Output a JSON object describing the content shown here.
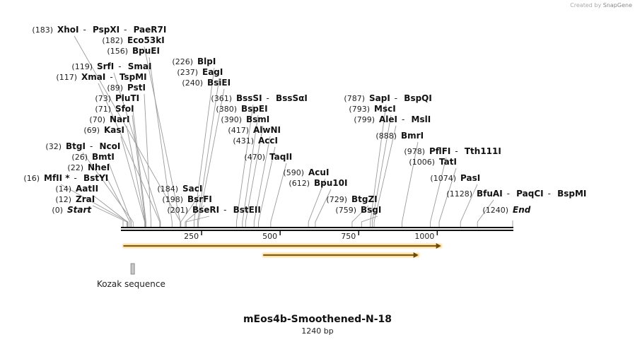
{
  "credit": {
    "prefix": "Created by",
    "brand": "SnapGene"
  },
  "title": "mEos4b-Smoothened-N-18",
  "subtitle": "1240 bp",
  "sequence_length": 1240,
  "ticks": [
    {
      "pos": 250,
      "label": "250"
    },
    {
      "pos": 500,
      "label": "500"
    },
    {
      "pos": 750,
      "label": "750"
    },
    {
      "pos": 1000,
      "label": "1000"
    }
  ],
  "features": [
    {
      "name": "feature-arrow-long",
      "start": 1,
      "end": 1012,
      "color": "#f3c35b",
      "label": ""
    },
    {
      "name": "feature-arrow-short",
      "start": 446,
      "end": 940,
      "color": "#f3c35b",
      "label": ""
    }
  ],
  "kozak": {
    "label": "Kozak sequence",
    "start": 25,
    "end": 33
  },
  "sites": [
    {
      "pos": 0,
      "pos_label": "(0)",
      "names": [
        "Start"
      ],
      "italic": true
    },
    {
      "pos": 12,
      "pos_label": "(12)",
      "names": [
        "ZraI"
      ]
    },
    {
      "pos": 14,
      "pos_label": "(14)",
      "names": [
        "AatII"
      ]
    },
    {
      "pos": 16,
      "pos_label": "(16)",
      "names": [
        "MfII *",
        "BstYI"
      ]
    },
    {
      "pos": 22,
      "pos_label": "(22)",
      "names": [
        "NheI"
      ]
    },
    {
      "pos": 26,
      "pos_label": "(26)",
      "names": [
        "BmtI"
      ]
    },
    {
      "pos": 32,
      "pos_label": "(32)",
      "names": [
        "BtgI",
        "NcoI"
      ]
    },
    {
      "pos": 69,
      "pos_label": "(69)",
      "names": [
        "KasI"
      ]
    },
    {
      "pos": 70,
      "pos_label": "(70)",
      "names": [
        "NarI"
      ]
    },
    {
      "pos": 71,
      "pos_label": "(71)",
      "names": [
        "SfoI"
      ]
    },
    {
      "pos": 73,
      "pos_label": "(73)",
      "names": [
        "PluTI"
      ]
    },
    {
      "pos": 89,
      "pos_label": "(89)",
      "names": [
        "PstI"
      ]
    },
    {
      "pos": 117,
      "pos_label": "(117)",
      "names": [
        "XmaI",
        "TspMI"
      ]
    },
    {
      "pos": 119,
      "pos_label": "(119)",
      "names": [
        "SrfI",
        "SmaI"
      ]
    },
    {
      "pos": 156,
      "pos_label": "(156)",
      "names": [
        "BpuEI"
      ]
    },
    {
      "pos": 182,
      "pos_label": "(182)",
      "names": [
        "Eco53kI"
      ]
    },
    {
      "pos": 183,
      "pos_label": "(183)",
      "names": [
        "XhoI",
        "PspXI",
        "PaeR7I"
      ]
    },
    {
      "pos": 184,
      "pos_label": "(184)",
      "names": [
        "SacI"
      ]
    },
    {
      "pos": 198,
      "pos_label": "(198)",
      "names": [
        "BsrFI"
      ]
    },
    {
      "pos": 201,
      "pos_label": "(201)",
      "names": [
        "BseRI",
        "BstEII"
      ]
    },
    {
      "pos": 226,
      "pos_label": "(226)",
      "names": [
        "BlpI"
      ]
    },
    {
      "pos": 237,
      "pos_label": "(237)",
      "names": [
        "EagI"
      ]
    },
    {
      "pos": 240,
      "pos_label": "(240)",
      "names": [
        "BsiEI"
      ]
    },
    {
      "pos": 361,
      "pos_label": "(361)",
      "names": [
        "BssSI",
        "BssSαI"
      ]
    },
    {
      "pos": 380,
      "pos_label": "(380)",
      "names": [
        "BspEI"
      ]
    },
    {
      "pos": 390,
      "pos_label": "(390)",
      "names": [
        "BsmI"
      ]
    },
    {
      "pos": 417,
      "pos_label": "(417)",
      "names": [
        "AlwNI"
      ]
    },
    {
      "pos": 431,
      "pos_label": "(431)",
      "names": [
        "AccI"
      ]
    },
    {
      "pos": 470,
      "pos_label": "(470)",
      "names": [
        "TaqII"
      ]
    },
    {
      "pos": 590,
      "pos_label": "(590)",
      "names": [
        "AcuI"
      ]
    },
    {
      "pos": 612,
      "pos_label": "(612)",
      "names": [
        "Bpu10I"
      ]
    },
    {
      "pos": 729,
      "pos_label": "(729)",
      "names": [
        "BtgZI"
      ]
    },
    {
      "pos": 759,
      "pos_label": "(759)",
      "names": [
        "BsgI"
      ]
    },
    {
      "pos": 787,
      "pos_label": "(787)",
      "names": [
        "SapI",
        "BspQI"
      ]
    },
    {
      "pos": 793,
      "pos_label": "(793)",
      "names": [
        "MscI"
      ]
    },
    {
      "pos": 799,
      "pos_label": "(799)",
      "names": [
        "AleI",
        "MslI"
      ]
    },
    {
      "pos": 888,
      "pos_label": "(888)",
      "names": [
        "BmrI"
      ]
    },
    {
      "pos": 978,
      "pos_label": "(978)",
      "names": [
        "PflFI",
        "Tth111I"
      ]
    },
    {
      "pos": 1006,
      "pos_label": "(1006)",
      "names": [
        "TatI"
      ]
    },
    {
      "pos": 1074,
      "pos_label": "(1074)",
      "names": [
        "PasI"
      ]
    },
    {
      "pos": 1128,
      "pos_label": "(1128)",
      "names": [
        "BfuAI",
        "PaqCI",
        "BspMI"
      ]
    },
    {
      "pos": 1240,
      "pos_label": "(1240)",
      "names": [
        "End"
      ],
      "italic": true
    }
  ]
}
